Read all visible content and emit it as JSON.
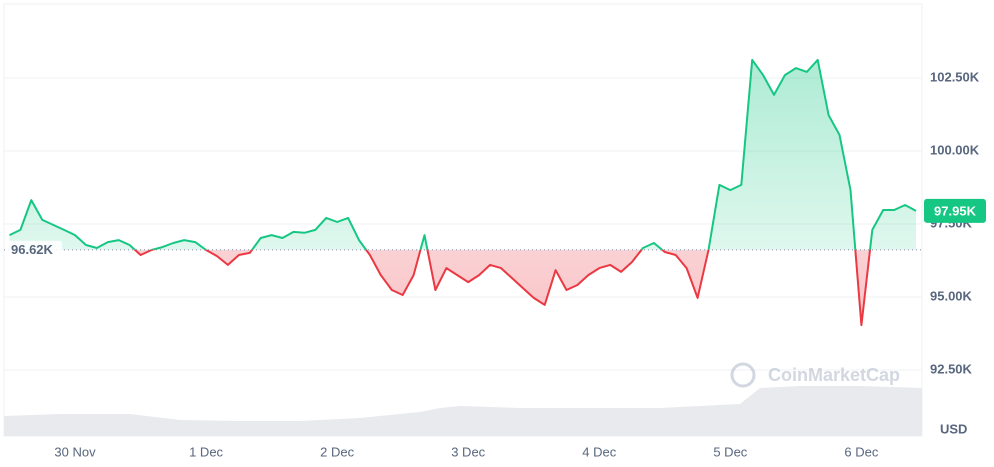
{
  "chart_data": {
    "type": "line",
    "y_label": "USD",
    "watermark": "CoinMarketCap",
    "categories": [
      null,
      null,
      null,
      null,
      null,
      null,
      "30 Nov",
      null,
      null,
      null,
      null,
      null,
      null,
      null,
      null,
      null,
      null,
      null,
      "1 Dec",
      null,
      null,
      null,
      null,
      null,
      null,
      null,
      null,
      null,
      null,
      null,
      "2 Dec",
      null,
      null,
      null,
      null,
      null,
      null,
      null,
      null,
      null,
      null,
      null,
      "3 Dec",
      null,
      null,
      null,
      null,
      null,
      null,
      null,
      null,
      null,
      null,
      null,
      "4 Dec",
      null,
      null,
      null,
      null,
      null,
      null,
      null,
      null,
      null,
      null,
      null,
      "5 Dec",
      null,
      null,
      null,
      null,
      null,
      null,
      null,
      null,
      null,
      null,
      null,
      "6 Dec",
      null,
      null,
      null,
      null,
      null
    ],
    "values": [
      97120,
      97300,
      98320,
      97640,
      97470,
      97300,
      97120,
      96780,
      96680,
      96880,
      96950,
      96780,
      96440,
      96610,
      96710,
      96850,
      96950,
      96880,
      96610,
      96400,
      96100,
      96440,
      96510,
      97020,
      97120,
      97020,
      97230,
      97200,
      97300,
      97710,
      97570,
      97710,
      96950,
      96440,
      95750,
      95240,
      95070,
      95750,
      97120,
      95240,
      95990,
      95750,
      95510,
      95750,
      96100,
      95990,
      95650,
      95310,
      94970,
      94730,
      95920,
      95240,
      95410,
      95750,
      95990,
      96100,
      95860,
      96200,
      96680,
      96850,
      96540,
      96440,
      95990,
      94970,
      96610,
      98840,
      98660,
      98840,
      103120,
      102600,
      101920,
      102600,
      102840,
      102710,
      103120,
      101230,
      100550,
      98660,
      94040,
      97300,
      97980,
      97980,
      98150,
      97950
    ],
    "value_labels": [
      null,
      null,
      null,
      null,
      null,
      null,
      null,
      null,
      null,
      null,
      null,
      null,
      null,
      null,
      null,
      null,
      null,
      null,
      null,
      null,
      null,
      null,
      null,
      null,
      null,
      null,
      null,
      null,
      null,
      null,
      null,
      null,
      null,
      null,
      null,
      null,
      null,
      null,
      null,
      null,
      null,
      null,
      null,
      null,
      null,
      null,
      null,
      null,
      null,
      null,
      null,
      null,
      null,
      null,
      null,
      null,
      null,
      null,
      null,
      null,
      null,
      null,
      null,
      null,
      null,
      null,
      null,
      null,
      null,
      null,
      null,
      null,
      null,
      null,
      null,
      null,
      null,
      null,
      null,
      null,
      null,
      null,
      null,
      "97.95K"
    ],
    "baseline": {
      "value": 96620,
      "label": "96.62K"
    },
    "color_up": "#16c784",
    "color_down": "#ea3943",
    "ylim": [
      90275,
      105000
    ],
    "yticks": [
      {
        "value": 92500,
        "label": "92.50K"
      },
      {
        "value": 95000,
        "label": "95.00K"
      },
      {
        "value": 97500,
        "label": "97.50K"
      },
      {
        "value": 100000,
        "label": "100.00K"
      },
      {
        "value": 102500,
        "label": "102.50K"
      }
    ],
    "grid": true
  }
}
